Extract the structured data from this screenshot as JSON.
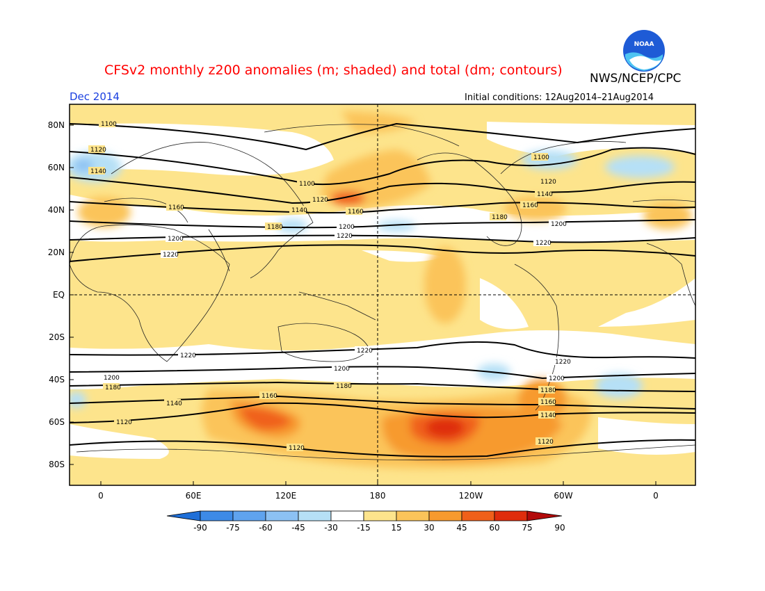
{
  "title": "CFSv2 monthly z200 anomalies (m; shaded) and total (dm; contours)",
  "agency": "NWS/NCEP/CPC",
  "month": "Dec 2014",
  "initial_conditions": "Initial conditions: 12Aug2014–21Aug2014",
  "logo_text": "NOAA",
  "lat_labels": [
    "80N",
    "60N",
    "40N",
    "20N",
    "EQ",
    "20S",
    "40S",
    "60S",
    "80S"
  ],
  "lon_labels": [
    "0",
    "60E",
    "120E",
    "180",
    "120W",
    "60W",
    "0"
  ],
  "colorbar": {
    "ticks": [
      "-90",
      "-75",
      "-60",
      "-45",
      "-30",
      "-15",
      "15",
      "30",
      "45",
      "60",
      "75",
      "90"
    ],
    "colors": [
      "#1f6fd8",
      "#3d8ae6",
      "#5fa3ee",
      "#8cc1f3",
      "#b6e0f6",
      "#ffffff",
      "#fde48c",
      "#fbc45a",
      "#f79a2e",
      "#f0601a",
      "#df2d0c",
      "#b20a0a"
    ]
  },
  "contour_labels": [
    "1100",
    "1120",
    "1140",
    "1160",
    "1180",
    "1200",
    "1220"
  ]
}
